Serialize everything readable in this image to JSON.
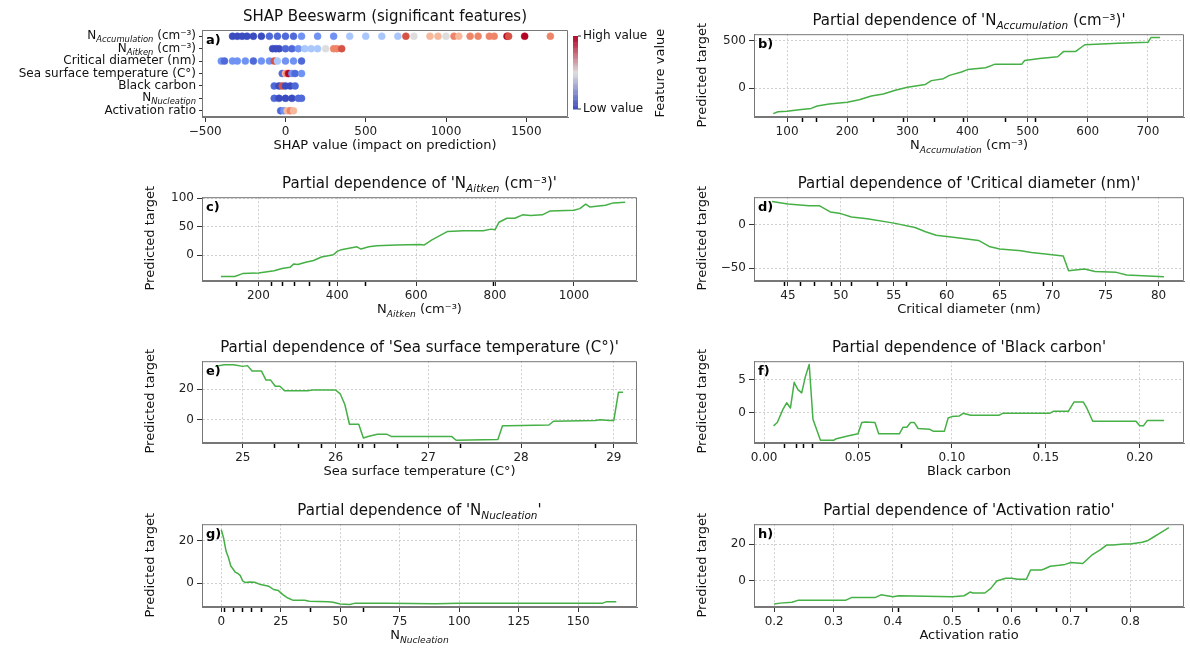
{
  "chart_data": [
    {
      "type": "scatter",
      "title": "SHAP Beeswarm (significant features)",
      "xlabel": "SHAP value (impact on prediction)",
      "clabel": "Feature value",
      "orientation": "horizontal",
      "marker": "circle",
      "categories": [
        "N$_{Accumulation}$ (cm⁻³)",
        "N$_{Aitken}$ (cm⁻³)",
        "Critical diameter (nm)",
        "Sea surface temperature (C°)",
        "Black carbon",
        "N$_{Nucleation}$",
        "Activation ratio"
      ],
      "xlim": [
        -520,
        1760
      ],
      "xticks": [
        {
          "value": -500,
          "label": "−500"
        },
        0,
        500,
        1000,
        1500
      ],
      "clim": [
        0,
        1
      ],
      "cticks": [
        {
          "value": 1,
          "label": "High value"
        },
        {
          "value": 0,
          "label": "Low value"
        }
      ],
      "annotations": [
        "a)"
      ],
      "series": [
        {
          "x": [
            "N$_{Accumulation}$ (cm⁻³)",
            "N$_{Accumulation}$ (cm⁻³)",
            "N$_{Accumulation}$ (cm⁻³)",
            "N$_{Accumulation}$ (cm⁻³)",
            "N$_{Accumulation}$ (cm⁻³)",
            "N$_{Accumulation}$ (cm⁻³)",
            "N$_{Accumulation}$ (cm⁻³)",
            "N$_{Accumulation}$ (cm⁻³)",
            "N$_{Accumulation}$ (cm⁻³)",
            "N$_{Accumulation}$ (cm⁻³)",
            "N$_{Accumulation}$ (cm⁻³)",
            "N$_{Accumulation}$ (cm⁻³)",
            "N$_{Accumulation}$ (cm⁻³)",
            "N$_{Accumulation}$ (cm⁻³)",
            "N$_{Accumulation}$ (cm⁻³)",
            "N$_{Accumulation}$ (cm⁻³)",
            "N$_{Accumulation}$ (cm⁻³)",
            "N$_{Accumulation}$ (cm⁻³)",
            "N$_{Accumulation}$ (cm⁻³)",
            "N$_{Accumulation}$ (cm⁻³)",
            "N$_{Accumulation}$ (cm⁻³)",
            "N$_{Accumulation}$ (cm⁻³)",
            "N$_{Accumulation}$ (cm⁻³)",
            "N$_{Accumulation}$ (cm⁻³)",
            "N$_{Accumulation}$ (cm⁻³)",
            "N$_{Accumulation}$ (cm⁻³)",
            "N$_{Accumulation}$ (cm⁻³)",
            "N$_{Accumulation}$ (cm⁻³)",
            "N$_{Accumulation}$ (cm⁻³)",
            "N$_{Accumulation}$ (cm⁻³)",
            "N$_{Accumulation}$ (cm⁻³)",
            "N$_{Accumulation}$ (cm⁻³)"
          ],
          "values": [
            -330,
            -300,
            -270,
            -240,
            -200,
            -150,
            -100,
            -50,
            0,
            50,
            100,
            200,
            300,
            400,
            500,
            600,
            700,
            750,
            800,
            900,
            950,
            1000,
            1050,
            1080,
            1150,
            1200,
            1270,
            1300,
            1380,
            1390,
            1490,
            1650
          ],
          "colors": [
            "#3b4cc0",
            "#3b4cc0",
            "#3b4cc0",
            "#3b4cc0",
            "#3b4cc0",
            "#3b4cc0",
            "#4f69d9",
            "#4f69d9",
            "#4f69d9",
            "#4f69d9",
            "#6f92f3",
            "#6f92f3",
            "#6f92f3",
            "#aac7fd",
            "#aac7fd",
            "#aac7fd",
            "#aac7fd",
            "#d65244",
            "#dddddd",
            "#f7b89c",
            "#f7b89c",
            "#dddddd",
            "#ee8468",
            "#f7b89c",
            "#ee8468",
            "#ee8468",
            "#ee8468",
            "#ee8468",
            "#b40426",
            "#d65244",
            "#b40426",
            "#ee8468"
          ]
        },
        {
          "x": [
            "N$_{Aitken}$ (cm⁻³)",
            "N$_{Aitken}$ (cm⁻³)",
            "N$_{Aitken}$ (cm⁻³)",
            "N$_{Aitken}$ (cm⁻³)",
            "N$_{Aitken}$ (cm⁻³)",
            "N$_{Aitken}$ (cm⁻³)",
            "N$_{Aitken}$ (cm⁻³)",
            "N$_{Aitken}$ (cm⁻³)",
            "N$_{Aitken}$ (cm⁻³)",
            "N$_{Aitken}$ (cm⁻³)",
            "N$_{Aitken}$ (cm⁻³)",
            "N$_{Aitken}$ (cm⁻³)",
            "N$_{Aitken}$ (cm⁻³)"
          ],
          "values": [
            -80,
            -60,
            -40,
            0,
            40,
            80,
            120,
            160,
            200,
            250,
            300,
            320,
            350
          ],
          "colors": [
            "#3b4cc0",
            "#3b4cc0",
            "#3b4cc0",
            "#4f69d9",
            "#4f69d9",
            "#6f92f3",
            "#aac7fd",
            "#aac7fd",
            "#aac7fd",
            "#dddddd",
            "#ee8468",
            "#ee8468",
            "#d65244"
          ]
        },
        {
          "x": [
            "Critical diameter (nm)",
            "Critical diameter (nm)",
            "Critical diameter (nm)",
            "Critical diameter (nm)",
            "Critical diameter (nm)",
            "Critical diameter (nm)",
            "Critical diameter (nm)",
            "Critical diameter (nm)",
            "Critical diameter (nm)",
            "Critical diameter (nm)",
            "Critical diameter (nm)",
            "Critical diameter (nm)",
            "Critical diameter (nm)"
          ],
          "values": [
            -400,
            -380,
            -330,
            -300,
            -250,
            -200,
            -150,
            -100,
            -70,
            -50,
            0,
            50,
            100
          ],
          "colors": [
            "#6f92f3",
            "#4f69d9",
            "#6f92f3",
            "#6f92f3",
            "#6f92f3",
            "#4f69d9",
            "#6f92f3",
            "#6f92f3",
            "#d65244",
            "#aac7fd",
            "#6f92f3",
            "#6f92f3",
            "#4f69d9"
          ]
        },
        {
          "x": [
            "Sea surface temperature (C°)",
            "Sea surface temperature (C°)",
            "Sea surface temperature (C°)",
            "Sea surface temperature (C°)",
            "Sea surface temperature (C°)",
            "Sea surface temperature (C°)",
            "Sea surface temperature (C°)"
          ],
          "values": [
            -20,
            0,
            10,
            20,
            40,
            60,
            100
          ],
          "colors": [
            "#4f69d9",
            "#f7b89c",
            "#ee8468",
            "#b40426",
            "#6f92f3",
            "#4f69d9",
            "#6f92f3"
          ]
        },
        {
          "x": [
            "Black carbon",
            "Black carbon",
            "Black carbon",
            "Black carbon",
            "Black carbon",
            "Black carbon"
          ],
          "values": [
            -70,
            -40,
            -20,
            0,
            30,
            60
          ],
          "colors": [
            "#4f69d9",
            "#3b4cc0",
            "#d65244",
            "#3b4cc0",
            "#3b4cc0",
            "#4f69d9"
          ]
        },
        {
          "x": [
            "N$_{Nucleation}$",
            "N$_{Nucleation}$",
            "N$_{Nucleation}$",
            "N$_{Nucleation}$",
            "N$_{Nucleation}$",
            "N$_{Nucleation}$"
          ],
          "values": [
            -70,
            -40,
            0,
            40,
            80,
            100
          ],
          "colors": [
            "#4f69d9",
            "#3b4cc0",
            "#3b4cc0",
            "#3b4cc0",
            "#4f69d9",
            "#4f69d9"
          ]
        },
        {
          "x": [
            "Activation ratio",
            "Activation ratio",
            "Activation ratio",
            "Activation ratio",
            "Activation ratio"
          ],
          "values": [
            -30,
            -10,
            10,
            30,
            50
          ],
          "colors": [
            "#4f69d9",
            "#6f92f3",
            "#f7b89c",
            "#ee8468",
            "#f7b89c"
          ]
        }
      ]
    },
    {
      "type": "line",
      "title": "Partial dependence of 'N$_{Accumulation}$ (cm⁻³)'",
      "xlabel": "N$_{Accumulation}$ (cm⁻³)",
      "ylabel": "Predicted target",
      "grid": true,
      "annotations": [
        "b)"
      ],
      "xlim": [
        45,
        760
      ],
      "xticks": [
        100,
        {
          "value": 126,
          "label": null
        },
        {
          "value": 149,
          "label": null
        },
        200,
        {
          "value": 243,
          "label": null
        },
        {
          "value": 293,
          "label": null
        },
        300,
        {
          "value": 345,
          "label": null
        },
        {
          "value": 394,
          "label": null
        },
        400,
        {
          "value": 463,
          "label": null
        },
        500,
        {
          "value": 513,
          "label": null
        },
        600,
        700
      ],
      "ylim": [
        -300,
        565
      ],
      "yticks": [
        0,
        500
      ],
      "series": [
        {
          "color": "#45b045",
          "x": [
            77,
            85,
            100,
            120,
            140,
            150,
            170,
            200,
            220,
            240,
            260,
            280,
            300,
            330,
            340,
            360,
            370,
            390,
            400,
            430,
            445,
            490,
            495,
            520,
            550,
            560,
            580,
            595,
            650,
            700,
            705,
            720
          ],
          "values": [
            -265,
            -245,
            -240,
            -225,
            -210,
            -185,
            -165,
            -145,
            -120,
            -80,
            -60,
            -20,
            10,
            40,
            80,
            100,
            135,
            170,
            195,
            215,
            250,
            250,
            290,
            310,
            330,
            385,
            385,
            455,
            470,
            480,
            530,
            530
          ]
        }
      ]
    },
    {
      "type": "line",
      "title": "Partial dependence of 'N$_{Aitken}$ (cm⁻³)'",
      "xlabel": "N$_{Aitken}$ (cm⁻³)",
      "ylabel": "Predicted target",
      "grid": true,
      "annotations": [
        "c)"
      ],
      "xlim": [
        57,
        1160
      ],
      "xticks": [
        {
          "value": 144,
          "label": null
        },
        200,
        {
          "value": 232,
          "label": null
        },
        {
          "value": 260,
          "label": null
        },
        {
          "value": 292,
          "label": null
        },
        {
          "value": 329,
          "label": null
        },
        {
          "value": 381,
          "label": null
        },
        400,
        {
          "value": 471,
          "label": null
        },
        600,
        {
          "value": 796,
          "label": null
        },
        800,
        1000
      ],
      "ylim": [
        -45,
        102
      ],
      "yticks": [
        0,
        50,
        100
      ],
      "series": [
        {
          "color": "#45b045",
          "x": [
            105,
            140,
            160,
            200,
            240,
            260,
            280,
            290,
            300,
            320,
            340,
            360,
            390,
            400,
            410,
            450,
            460,
            480,
            500,
            550,
            610,
            620,
            640,
            680,
            720,
            770,
            790,
            800,
            810,
            830,
            850,
            870,
            890,
            920,
            940,
            1000,
            1015,
            1030,
            1040,
            1080,
            1100,
            1130
          ],
          "values": [
            -37,
            -37,
            -32,
            -31,
            -27,
            -23,
            -21,
            -15,
            -16,
            -12,
            -9,
            -3,
            1,
            7,
            10,
            15,
            11,
            15,
            17,
            18,
            19,
            18,
            27,
            42,
            43,
            43,
            46,
            45,
            58,
            65,
            65,
            71,
            70,
            71,
            78,
            79,
            82,
            90,
            85,
            88,
            92,
            93
          ]
        }
      ]
    },
    {
      "type": "line",
      "title": "Partial dependence of 'Critical diameter (nm)'",
      "xlabel": "Critical diameter (nm)",
      "ylabel": "Predicted target",
      "grid": true,
      "annotations": [
        "d)"
      ],
      "xlim": [
        41.8,
        82.4
      ],
      "xticks": [
        {
          "value": 44.7,
          "label": null
        },
        45,
        {
          "value": 46.2,
          "label": null
        },
        {
          "value": 47.5,
          "label": null
        },
        {
          "value": 49.1,
          "label": null
        },
        50,
        {
          "value": 51.0,
          "label": null
        },
        {
          "value": 53.5,
          "label": null
        },
        55,
        {
          "value": 56.2,
          "label": null
        },
        60,
        65,
        {
          "value": 69.1,
          "label": null
        },
        70,
        75,
        80
      ],
      "ylim": [
        -65,
        32
      ],
      "yticks": [
        {
          "value": -50,
          "label": "−50"
        },
        0
      ],
      "series": [
        {
          "color": "#45b045",
          "x": [
            43.5,
            45,
            47,
            48,
            49,
            50,
            51,
            52.5,
            55,
            57,
            58,
            59,
            61,
            63,
            64,
            65,
            67,
            68,
            71,
            71.5,
            73,
            74,
            76,
            77,
            80.5
          ],
          "values": [
            27,
            24,
            22,
            22,
            15,
            13,
            9,
            7,
            2,
            -3,
            -8,
            -12,
            -15,
            -18,
            -25,
            -28,
            -30,
            -32,
            -36,
            -53,
            -51,
            -54,
            -55,
            -58,
            -60
          ]
        }
      ]
    },
    {
      "type": "line",
      "title": "Partial dependence of 'Sea surface temperature (C°)'",
      "xlabel": "Sea surface temperature (C°)",
      "ylabel": "Predicted target",
      "grid": true,
      "annotations": [
        "e)"
      ],
      "xlim": [
        24.56,
        29.25
      ],
      "xticks": [
        25,
        {
          "value": 25.34,
          "label": null
        },
        {
          "value": 25.6,
          "label": null
        },
        {
          "value": 25.85,
          "label": null
        },
        26,
        {
          "value": 26.25,
          "label": null
        },
        {
          "value": 26.29,
          "label": null
        },
        {
          "value": 26.42,
          "label": null
        },
        {
          "value": 26.67,
          "label": null
        },
        27,
        {
          "value": 27.35,
          "label": null
        },
        28,
        {
          "value": 28.8,
          "label": null
        },
        29
      ],
      "ylim": [
        -15.3,
        38.4
      ],
      "yticks": [
        0,
        20
      ],
      "series": [
        {
          "color": "#45b045",
          "x": [
            24.7,
            24.8,
            24.9,
            25.0,
            25.05,
            25.1,
            25.2,
            25.25,
            25.3,
            25.35,
            25.4,
            25.45,
            25.7,
            25.75,
            26.0,
            26.05,
            26.1,
            26.15,
            26.25,
            26.3,
            26.35,
            26.45,
            26.55,
            26.6,
            27.25,
            27.3,
            27.75,
            27.8,
            28.3,
            28.35,
            28.8,
            28.85,
            28.95,
            29.0,
            29.05,
            29.1
          ],
          "values": [
            35,
            36,
            36,
            35,
            35.5,
            32,
            32,
            26,
            26,
            22,
            22,
            19,
            19,
            19.5,
            19.5,
            17,
            10,
            -3,
            -3,
            -12,
            -11,
            -9.5,
            -9.5,
            -11,
            -11,
            -13.5,
            -13,
            -4,
            -3.5,
            -1,
            -0.5,
            0,
            -0.5,
            -0.5,
            18,
            18
          ]
        }
      ]
    },
    {
      "type": "line",
      "title": "Partial dependence of 'Black carbon'",
      "xlabel": "Black carbon",
      "ylabel": "Predicted target",
      "grid": true,
      "annotations": [
        "f)"
      ],
      "xlim": [
        -0.0054,
        0.2236
      ],
      "xticks": [
        {
          "value": 0,
          "label": "0.00"
        },
        {
          "value": 0.011,
          "label": null
        },
        {
          "value": 0.017,
          "label": null
        },
        {
          "value": 0.021,
          "label": null
        },
        {
          "value": 0.026,
          "label": null
        },
        0.05,
        {
          "value": 0.073,
          "label": null
        },
        {
          "value": 0.1,
          "label": "0.10"
        },
        {
          "value": 0.146,
          "label": null
        },
        0.15,
        {
          "value": 0.2,
          "label": "0.20"
        }
      ],
      "ylim": [
        -4.6,
        7.8
      ],
      "yticks": [
        0,
        5
      ],
      "series": [
        {
          "color": "#45b045",
          "x": [
            0.005,
            0.007,
            0.01,
            0.012,
            0.014,
            0.016,
            0.018,
            0.02,
            0.022,
            0.024,
            0.026,
            0.03,
            0.037,
            0.038,
            0.045,
            0.05,
            0.052,
            0.054,
            0.059,
            0.061,
            0.072,
            0.074,
            0.076,
            0.078,
            0.08,
            0.082,
            0.088,
            0.09,
            0.096,
            0.098,
            0.1,
            0.104,
            0.106,
            0.11,
            0.125,
            0.127,
            0.152,
            0.154,
            0.162,
            0.165,
            0.17,
            0.172,
            0.175,
            0.198,
            0.2,
            0.202,
            0.204,
            0.213
          ],
          "values": [
            -2,
            -1.5,
            0.5,
            1.5,
            0.7,
            4.6,
            3.5,
            3.0,
            5.5,
            7.3,
            -1,
            -4.2,
            -4.2,
            -4,
            -3.5,
            -3.2,
            -1.5,
            -1.4,
            -1.5,
            -3.2,
            -3.2,
            -2.2,
            -2.2,
            -1.5,
            -1.5,
            -2.4,
            -2.5,
            -2.8,
            -2.8,
            -0.8,
            -0.6,
            -0.5,
            -0.1,
            -0.4,
            -0.4,
            -0.1,
            -0.1,
            0.2,
            0.2,
            1.6,
            1.6,
            0.6,
            -1.3,
            -1.3,
            -2.0,
            -2.0,
            -1.2,
            -1.2
          ]
        }
      ]
    },
    {
      "type": "line",
      "title": "Partial dependence of 'N$_{Nucleation}$'",
      "xlabel": "N$_{Nucleation}$",
      "ylabel": "Predicted target",
      "grid": true,
      "annotations": [
        "g)"
      ],
      "xlim": [
        -8.1,
        174.7
      ],
      "xticks": [
        0,
        {
          "value": 1.3,
          "label": null
        },
        {
          "value": 5.3,
          "label": null
        },
        {
          "value": 9.1,
          "label": null
        },
        {
          "value": 12.9,
          "label": null
        },
        {
          "value": 16.7,
          "label": null
        },
        25,
        {
          "value": 37.4,
          "label": null
        },
        50,
        {
          "value": 59.6,
          "label": null
        },
        75,
        100,
        125,
        150
      ],
      "ylim": [
        -11.2,
        27.6
      ],
      "yticks": [
        0,
        20
      ],
      "series": [
        {
          "color": "#45b045",
          "x": [
            0,
            1,
            2,
            3,
            4,
            6,
            7,
            8,
            9,
            10,
            12,
            14,
            16,
            18,
            20,
            22,
            24,
            26,
            28,
            30,
            35,
            37,
            45,
            47,
            50,
            54,
            56,
            70,
            90,
            100,
            160,
            162,
            166
          ],
          "values": [
            25,
            21,
            15,
            12,
            8,
            5,
            4.5,
            3.5,
            1,
            0.3,
            0.5,
            0.4,
            -0.5,
            -1,
            -1.5,
            -3,
            -3.5,
            -5.5,
            -7,
            -8,
            -8,
            -8.5,
            -8.7,
            -9,
            -9.8,
            -10,
            -9.5,
            -9.5,
            -9.7,
            -9.5,
            -9.5,
            -8.7,
            -8.7
          ]
        }
      ]
    },
    {
      "type": "line",
      "title": "Partial dependence of 'Activation ratio'",
      "xlabel": "Activation ratio",
      "ylabel": "Predicted target",
      "grid": true,
      "annotations": [
        "h)"
      ],
      "xlim": [
        0.166,
        0.8905
      ],
      "xticks": [
        0.2,
        0.3,
        0.4,
        {
          "value": 0.41,
          "label": null
        },
        0.5,
        {
          "value": 0.544,
          "label": null
        },
        {
          "value": 0.576,
          "label": null
        },
        0.6,
        {
          "value": 0.642,
          "label": null
        },
        {
          "value": 0.676,
          "label": null
        },
        0.7,
        {
          "value": 0.726,
          "label": null
        },
        0.8
      ],
      "ylim": [
        -14.1,
        30.8
      ],
      "yticks": [
        0,
        20
      ],
      "series": [
        {
          "color": "#45b045",
          "x": [
            0.2,
            0.21,
            0.23,
            0.24,
            0.32,
            0.33,
            0.37,
            0.38,
            0.39,
            0.4,
            0.41,
            0.5,
            0.52,
            0.53,
            0.535,
            0.555,
            0.565,
            0.575,
            0.59,
            0.6,
            0.61,
            0.625,
            0.632,
            0.65,
            0.655,
            0.665,
            0.68,
            0.69,
            0.7,
            0.72,
            0.735,
            0.75,
            0.76,
            0.77,
            0.79,
            0.8,
            0.82,
            0.83,
            0.84,
            0.85,
            0.865
          ],
          "values": [
            -12.5,
            -12,
            -11.5,
            -10.5,
            -10.5,
            -9,
            -9,
            -7.5,
            -8,
            -8.5,
            -8,
            -8.5,
            -8,
            -6,
            -6.5,
            -6.5,
            -4,
            0,
            1.5,
            1.5,
            1,
            1,
            6,
            6,
            6.5,
            8,
            8.5,
            9,
            10,
            9.5,
            14,
            17,
            19.5,
            19.5,
            20,
            20,
            21,
            22,
            24,
            26,
            29
          ]
        }
      ]
    }
  ]
}
